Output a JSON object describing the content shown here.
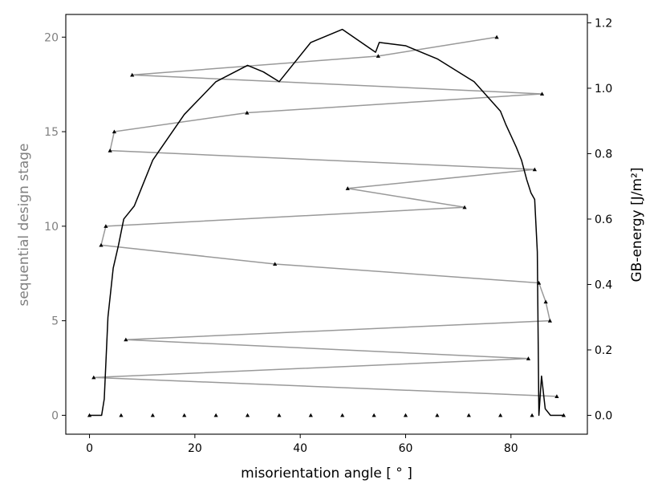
{
  "chart_data": {
    "type": "line",
    "xlabel": "misorientation angle [$^\\circ$]",
    "xlabel_display": "misorientation angle [ ° ]",
    "ylabel_left": "sequential design stage",
    "ylabel_right": "GB-energy [J/m²]",
    "xlim": [
      -4.5,
      94.5
    ],
    "ylim_left": [
      -1.0,
      21.2
    ],
    "ylim_right": [
      -0.0577,
      1.2256
    ],
    "x_ticks": [
      0,
      20,
      40,
      60,
      80
    ],
    "left_ticks": [
      0,
      5,
      10,
      15,
      20
    ],
    "right_ticks": [
      0.0,
      0.2,
      0.4,
      0.6,
      0.8,
      1.0,
      1.2
    ],
    "right_tick_labels": [
      "0.0",
      "0.2",
      "0.4",
      "0.6",
      "0.8",
      "1.0",
      "1.2"
    ],
    "colors": {
      "design_series": "#999999",
      "energy_curve": "#000000",
      "left_axis_text": "#808080"
    },
    "series": [
      {
        "role": "sequential design points (stage 1-20)",
        "axis": "left",
        "points": [
          [
            88.7,
            1
          ],
          [
            0.8,
            2
          ],
          [
            83.3,
            3
          ],
          [
            6.9,
            4
          ],
          [
            87.4,
            5
          ],
          [
            86.6,
            6
          ],
          [
            85.3,
            7
          ],
          [
            35.2,
            8
          ],
          [
            2.2,
            9
          ],
          [
            3.1,
            10
          ],
          [
            71.2,
            11
          ],
          [
            49.0,
            12
          ],
          [
            84.5,
            13
          ],
          [
            3.9,
            14
          ],
          [
            4.7,
            15
          ],
          [
            29.9,
            16
          ],
          [
            85.9,
            17
          ],
          [
            8.1,
            18
          ],
          [
            54.8,
            19
          ],
          [
            77.3,
            20
          ]
        ]
      },
      {
        "role": "initial design points (stage 0)",
        "axis": "left",
        "points": [
          [
            0,
            0
          ],
          [
            6,
            0
          ],
          [
            12,
            0
          ],
          [
            18,
            0
          ],
          [
            24,
            0
          ],
          [
            30,
            0
          ],
          [
            36,
            0
          ],
          [
            42,
            0
          ],
          [
            48,
            0
          ],
          [
            54,
            0
          ],
          [
            60,
            0
          ],
          [
            66,
            0
          ],
          [
            72,
            0
          ],
          [
            78,
            0
          ],
          [
            84,
            0
          ],
          [
            90,
            0
          ]
        ]
      },
      {
        "role": "GB-energy curve",
        "axis": "right",
        "points": [
          [
            0,
            0.0
          ],
          [
            2.3,
            0.0
          ],
          [
            2.8,
            0.05
          ],
          [
            3.5,
            0.3
          ],
          [
            4.5,
            0.45
          ],
          [
            5.5,
            0.52
          ],
          [
            6.5,
            0.6
          ],
          [
            7.5,
            0.62
          ],
          [
            8.5,
            0.64
          ],
          [
            10,
            0.7
          ],
          [
            12,
            0.78
          ],
          [
            15,
            0.85
          ],
          [
            18,
            0.92
          ],
          [
            24,
            1.02
          ],
          [
            30,
            1.07
          ],
          [
            33,
            1.05
          ],
          [
            36,
            1.02
          ],
          [
            42,
            1.14
          ],
          [
            48,
            1.18
          ],
          [
            54.3,
            1.11
          ],
          [
            55,
            1.14
          ],
          [
            60,
            1.13
          ],
          [
            66,
            1.09
          ],
          [
            72,
            1.03
          ],
          [
            73,
            1.02
          ],
          [
            78,
            0.93
          ],
          [
            79,
            0.89
          ],
          [
            81,
            0.82
          ],
          [
            82,
            0.78
          ],
          [
            83,
            0.72
          ],
          [
            83.8,
            0.68
          ],
          [
            84.5,
            0.66
          ],
          [
            85,
            0.5
          ],
          [
            85.3,
            0.0
          ],
          [
            85.8,
            0.12
          ],
          [
            86.5,
            0.02
          ],
          [
            87.5,
            0.0
          ],
          [
            90,
            0.0
          ]
        ]
      }
    ]
  }
}
